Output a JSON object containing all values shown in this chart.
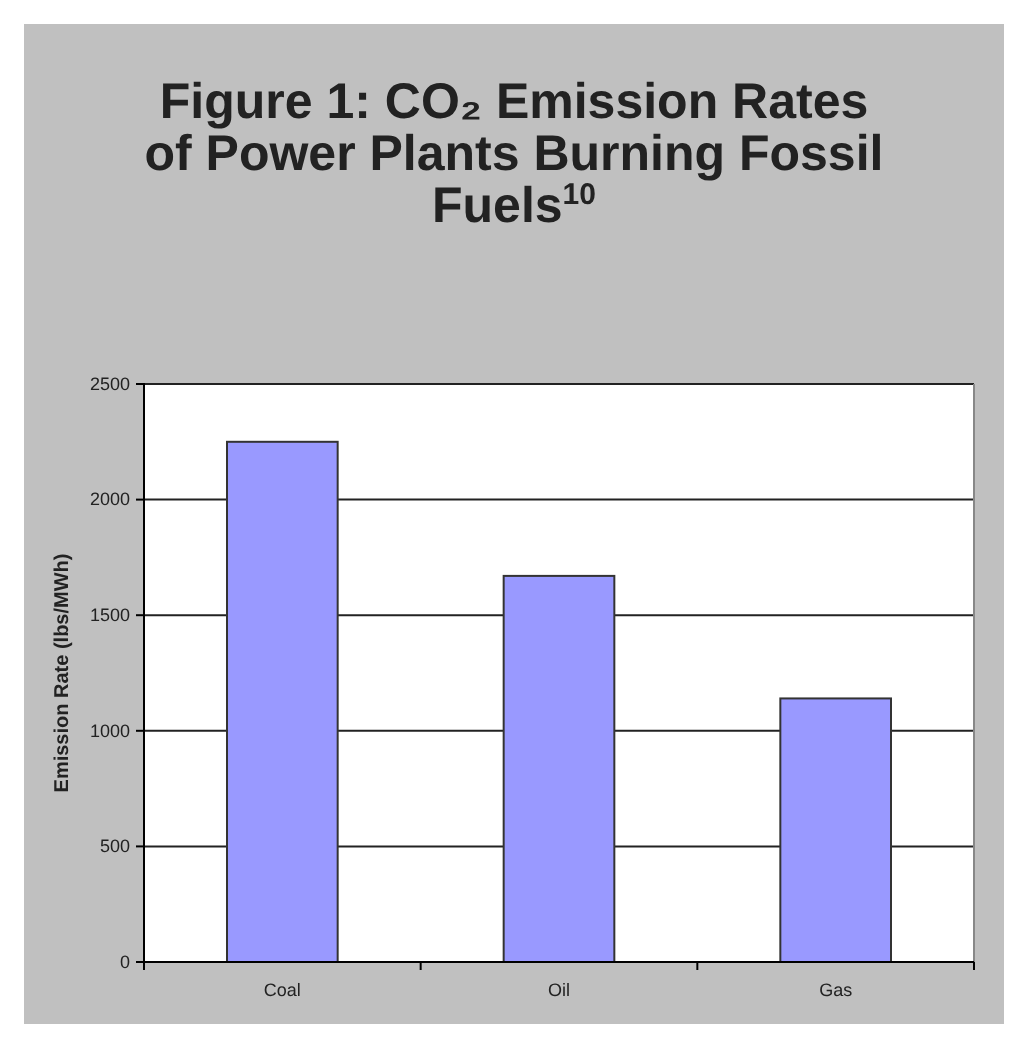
{
  "chart_data": {
    "type": "bar",
    "title": "Figure 1: CO₂ Emission Rates of Power Plants Burning Fossil Fuels$^{10}$",
    "ylabel": "Emission Rate (lbs/MWh)",
    "categories": [
      "Coal",
      "Oil",
      "Gas"
    ],
    "series": [
      {
        "color": "#9999ff",
        "values": [
          2250,
          1670,
          1140
        ]
      }
    ],
    "ylim": [
      0,
      2500
    ],
    "yticks": [
      0,
      500,
      1000,
      1500,
      2000,
      2500
    ],
    "grid": "y"
  }
}
